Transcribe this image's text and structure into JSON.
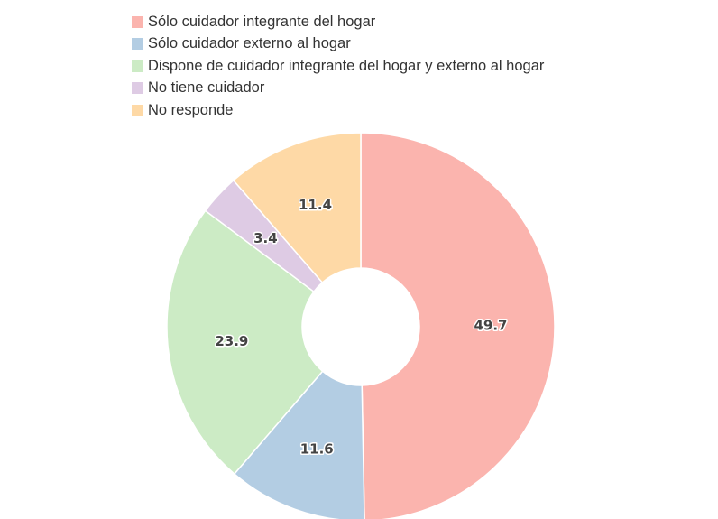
{
  "chart_data": {
    "type": "pie",
    "categories": [
      "Sólo cuidador integrante del hogar",
      "Sólo cuidador externo al hogar",
      "Dispone de cuidador integrante del hogar y externo al hogar",
      "No tiene cuidador",
      "No responde"
    ],
    "values": [
      49.7,
      11.6,
      23.9,
      3.4,
      11.4
    ],
    "value_labels": [
      "49.7",
      "11.6",
      "23.9",
      "3.4",
      "11.4"
    ],
    "colors": [
      "#fbb4ae",
      "#b3cde3",
      "#ccebc5",
      "#decbe4",
      "#fed9a6"
    ],
    "donut": true,
    "start": "12 o'clock",
    "direction": "clockwise",
    "legend_position": "top-left"
  }
}
